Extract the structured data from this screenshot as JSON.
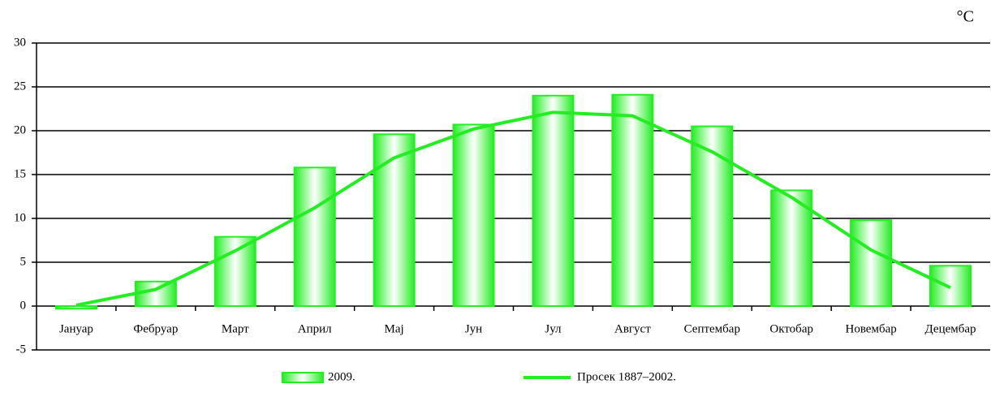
{
  "chart_data": {
    "type": "bar_line",
    "unit": "°C",
    "categories": [
      "Јануар",
      "Фебруар",
      "Март",
      "Април",
      "Мај",
      "Јун",
      "Јул",
      "Август",
      "Септембар",
      "Октобар",
      "Новембар",
      "Децембар"
    ],
    "series": [
      {
        "name": "2009.",
        "type": "bar",
        "color": "#22ee22",
        "values": [
          -0.3,
          2.8,
          7.9,
          15.8,
          19.6,
          20.7,
          24.0,
          24.1,
          20.5,
          13.2,
          9.8,
          4.6
        ]
      },
      {
        "name": "Просек 1887–2002.",
        "type": "line",
        "color": "#22ee22",
        "values": [
          0.1,
          1.9,
          6.3,
          11.2,
          16.9,
          20.2,
          22.1,
          21.7,
          17.6,
          12.4,
          6.4,
          2.1
        ]
      }
    ],
    "ylim": [
      -5,
      30
    ],
    "yticks": [
      -5,
      0,
      5,
      10,
      15,
      20,
      25,
      30
    ],
    "grid": true
  }
}
